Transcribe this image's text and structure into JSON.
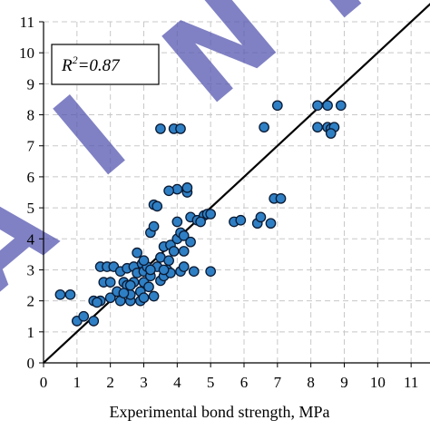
{
  "chart_data": {
    "type": "scatter",
    "xlabel": "Experimental bond strength, MPa",
    "ylabel": "",
    "xlim": [
      0,
      12
    ],
    "ylim": [
      0,
      11
    ],
    "x_ticks": [
      "0",
      "1",
      "2",
      "3",
      "4",
      "5",
      "6",
      "7",
      "8",
      "9",
      "10",
      "11"
    ],
    "y_ticks": [
      "0",
      "1",
      "2",
      "3",
      "4",
      "5",
      "6",
      "7",
      "8",
      "9",
      "10",
      "11"
    ],
    "grid": true,
    "reference_line": {
      "type": "y=x",
      "color": "#000000"
    },
    "annotation": {
      "r2_prefix": "R",
      "r2_sup": "2",
      "r2_value": "=0.87",
      "position": "top-left"
    },
    "marker_color": "#2f7fc4",
    "marker_edge": "#0a1a33",
    "points": [
      [
        0.5,
        2.2
      ],
      [
        0.8,
        2.2
      ],
      [
        1.0,
        1.35
      ],
      [
        1.2,
        1.5
      ],
      [
        1.5,
        1.35
      ],
      [
        1.5,
        2.0
      ],
      [
        1.7,
        2.0
      ],
      [
        1.8,
        2.6
      ],
      [
        1.7,
        3.1
      ],
      [
        1.9,
        3.1
      ],
      [
        2.0,
        2.1
      ],
      [
        2.0,
        2.6
      ],
      [
        2.1,
        3.1
      ],
      [
        2.2,
        2.3
      ],
      [
        2.3,
        2.0
      ],
      [
        2.4,
        2.6
      ],
      [
        2.3,
        2.95
      ],
      [
        2.5,
        2.5
      ],
      [
        2.5,
        3.05
      ],
      [
        2.6,
        2.0
      ],
      [
        2.6,
        2.2
      ],
      [
        2.7,
        2.6
      ],
      [
        2.7,
        3.1
      ],
      [
        2.8,
        2.9
      ],
      [
        2.9,
        2.0
      ],
      [
        2.9,
        2.3
      ],
      [
        2.95,
        3.2
      ],
      [
        3.0,
        2.6
      ],
      [
        3.0,
        2.1
      ],
      [
        3.0,
        2.95
      ],
      [
        3.1,
        3.1
      ],
      [
        3.2,
        2.8
      ],
      [
        3.2,
        4.2
      ],
      [
        3.3,
        4.4
      ],
      [
        3.3,
        5.1
      ],
      [
        3.4,
        5.05
      ],
      [
        3.4,
        3.1
      ],
      [
        3.5,
        2.65
      ],
      [
        3.5,
        3.4
      ],
      [
        3.6,
        3.75
      ],
      [
        3.6,
        2.8
      ],
      [
        3.7,
        3.0
      ],
      [
        3.75,
        3.3
      ],
      [
        3.8,
        3.8
      ],
      [
        3.8,
        2.9
      ],
      [
        3.9,
        3.6
      ],
      [
        4.0,
        4.0
      ],
      [
        4.0,
        4.55
      ],
      [
        4.0,
        5.6
      ],
      [
        4.1,
        4.2
      ],
      [
        4.1,
        2.95
      ],
      [
        4.2,
        4.1
      ],
      [
        4.2,
        3.1
      ],
      [
        4.3,
        5.5
      ],
      [
        4.3,
        5.65
      ],
      [
        4.4,
        4.7
      ],
      [
        4.4,
        3.9
      ],
      [
        4.5,
        2.95
      ],
      [
        4.6,
        4.6
      ],
      [
        4.8,
        4.75
      ],
      [
        4.7,
        4.55
      ],
      [
        4.9,
        4.8
      ],
      [
        5.0,
        4.8
      ],
      [
        5.0,
        2.95
      ],
      [
        3.5,
        7.55
      ],
      [
        3.9,
        7.55
      ],
      [
        4.1,
        7.55
      ],
      [
        3.75,
        5.55
      ],
      [
        2.8,
        3.55
      ],
      [
        3.3,
        2.15
      ],
      [
        3.2,
        3.0
      ],
      [
        4.2,
        3.6
      ],
      [
        5.7,
        4.55
      ],
      [
        5.9,
        4.6
      ],
      [
        6.4,
        4.5
      ],
      [
        6.5,
        4.7
      ],
      [
        6.8,
        4.5
      ],
      [
        6.9,
        5.3
      ],
      [
        7.1,
        5.3
      ],
      [
        6.6,
        7.6
      ],
      [
        7.0,
        8.3
      ],
      [
        8.2,
        8.3
      ],
      [
        8.5,
        8.3
      ],
      [
        8.9,
        8.3
      ],
      [
        8.2,
        7.6
      ],
      [
        8.5,
        7.6
      ],
      [
        8.6,
        7.55
      ],
      [
        8.7,
        7.6
      ],
      [
        8.6,
        7.4
      ],
      [
        1.6,
        1.95
      ],
      [
        2.6,
        2.5
      ],
      [
        2.4,
        2.25
      ],
      [
        3.15,
        2.45
      ],
      [
        3.6,
        3.0
      ],
      [
        3.0,
        3.3
      ]
    ]
  },
  "watermark_text": "A I N T"
}
